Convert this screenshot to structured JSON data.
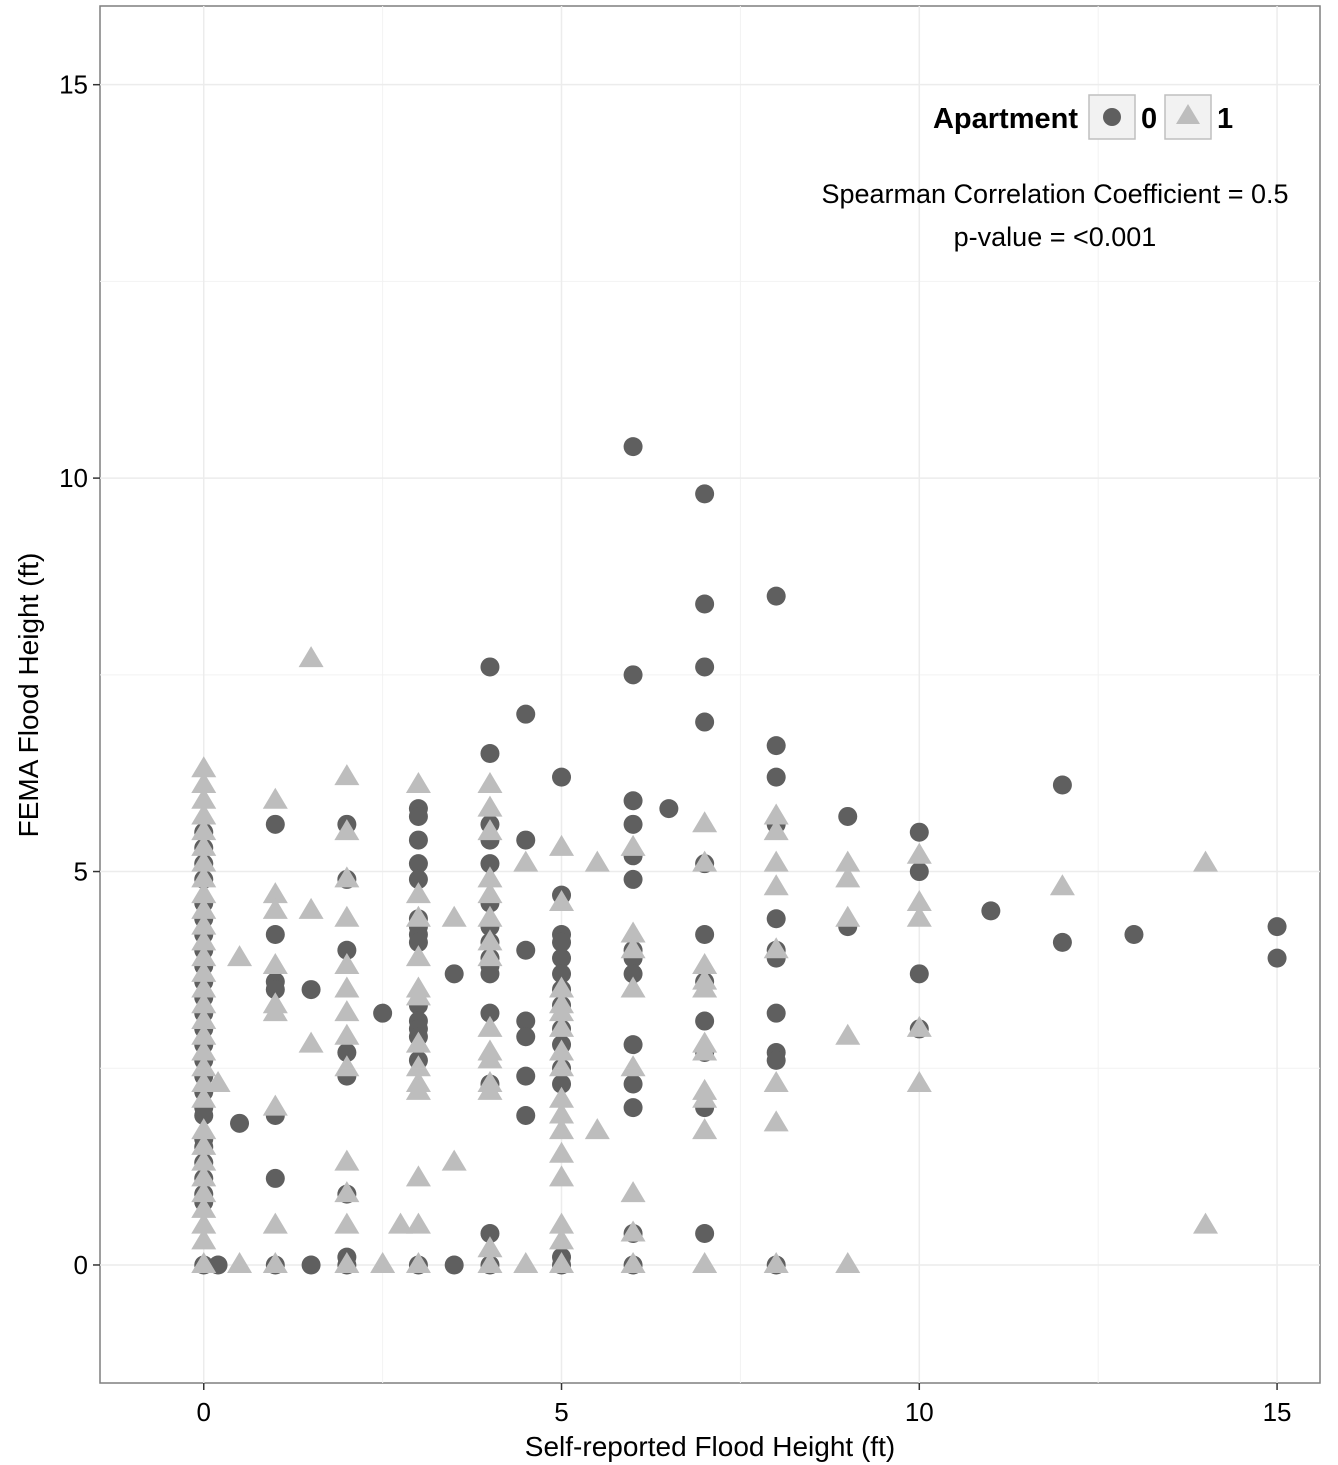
{
  "chart_data": {
    "type": "scatter",
    "xlabel": "Self-reported Flood Height (ft)",
    "ylabel": "FEMA Flood Height (ft)",
    "xlim": [
      -1.45,
      15.6
    ],
    "ylim": [
      -1.5,
      16
    ],
    "x_ticks": [
      0,
      5,
      10,
      15
    ],
    "y_ticks": [
      0,
      5,
      10,
      15
    ],
    "grid": true,
    "legend_position": "top-right",
    "legend": {
      "title": "Apartment",
      "entries": [
        {
          "label": "0",
          "shape": "circle"
        },
        {
          "label": "1",
          "shape": "triangle"
        }
      ]
    },
    "annotation": {
      "line1": "Spearman Correlation Coefficient = 0.5",
      "line2": "p-value = <0.001"
    },
    "colors": {
      "0": "#5f5f5f",
      "1": "#bdbdbd"
    },
    "series": [
      {
        "name": "0",
        "shape": "circle",
        "points": [
          [
            0,
            5.5
          ],
          [
            0,
            5.3
          ],
          [
            0,
            5.1
          ],
          [
            0,
            4.9
          ],
          [
            0,
            4.6
          ],
          [
            0,
            4.4
          ],
          [
            0,
            4.2
          ],
          [
            0,
            4.0
          ],
          [
            0,
            3.8
          ],
          [
            0,
            3.6
          ],
          [
            0,
            3.4
          ],
          [
            0,
            3.2
          ],
          [
            0,
            3.0
          ],
          [
            0,
            2.8
          ],
          [
            0,
            2.6
          ],
          [
            0,
            2.4
          ],
          [
            0,
            2.2
          ],
          [
            0,
            2.0
          ],
          [
            0,
            1.9
          ],
          [
            0,
            1.6
          ],
          [
            0,
            1.5
          ],
          [
            0,
            1.3
          ],
          [
            0,
            1.1
          ],
          [
            0,
            0.9
          ],
          [
            0,
            0.8
          ],
          [
            0,
            0.0
          ],
          [
            0.5,
            1.8
          ],
          [
            0.2,
            0.0
          ],
          [
            1,
            5.6
          ],
          [
            1,
            4.2
          ],
          [
            1,
            3.6
          ],
          [
            1,
            3.5
          ],
          [
            1,
            1.1
          ],
          [
            1,
            1.9
          ],
          [
            1,
            0.0
          ],
          [
            1.5,
            3.5
          ],
          [
            1.5,
            0.0
          ],
          [
            2,
            5.6
          ],
          [
            2,
            4.9
          ],
          [
            2,
            4.0
          ],
          [
            2,
            2.7
          ],
          [
            2,
            2.4
          ],
          [
            2,
            0.9
          ],
          [
            2,
            0.1
          ],
          [
            2,
            0.0
          ],
          [
            2.5,
            3.2
          ],
          [
            3,
            5.8
          ],
          [
            3,
            5.7
          ],
          [
            3,
            5.4
          ],
          [
            3,
            5.1
          ],
          [
            3,
            4.9
          ],
          [
            3,
            4.4
          ],
          [
            3,
            4.3
          ],
          [
            3,
            4.2
          ],
          [
            3,
            4.1
          ],
          [
            3,
            3.3
          ],
          [
            3,
            3.1
          ],
          [
            3,
            3.0
          ],
          [
            3,
            2.9
          ],
          [
            3,
            2.6
          ],
          [
            3,
            0.0
          ],
          [
            3.5,
            3.7
          ],
          [
            3.5,
            0.0
          ],
          [
            4,
            7.6
          ],
          [
            4,
            6.5
          ],
          [
            4,
            5.6
          ],
          [
            4,
            5.4
          ],
          [
            4,
            5.1
          ],
          [
            4,
            4.6
          ],
          [
            4,
            4.3
          ],
          [
            4,
            4.1
          ],
          [
            4,
            3.9
          ],
          [
            4,
            3.8
          ],
          [
            4,
            3.7
          ],
          [
            4,
            3.2
          ],
          [
            4,
            2.3
          ],
          [
            4,
            0.4
          ],
          [
            4,
            0.0
          ],
          [
            4.5,
            7.0
          ],
          [
            4.5,
            5.4
          ],
          [
            4.5,
            4.0
          ],
          [
            4.5,
            3.1
          ],
          [
            4.5,
            2.9
          ],
          [
            4.5,
            2.4
          ],
          [
            4.5,
            1.9
          ],
          [
            5,
            6.2
          ],
          [
            5,
            4.7
          ],
          [
            5,
            4.2
          ],
          [
            5,
            4.1
          ],
          [
            5,
            3.9
          ],
          [
            5,
            3.7
          ],
          [
            5,
            3.5
          ],
          [
            5,
            3.3
          ],
          [
            5,
            3.0
          ],
          [
            5,
            2.8
          ],
          [
            5,
            2.5
          ],
          [
            5,
            2.3
          ],
          [
            5,
            0.1
          ],
          [
            5,
            0.0
          ],
          [
            6,
            10.4
          ],
          [
            6,
            7.5
          ],
          [
            6,
            5.9
          ],
          [
            6,
            5.6
          ],
          [
            6,
            5.2
          ],
          [
            6,
            4.9
          ],
          [
            6,
            4.0
          ],
          [
            6,
            3.9
          ],
          [
            6,
            3.7
          ],
          [
            6,
            2.8
          ],
          [
            6,
            2.3
          ],
          [
            6,
            2.0
          ],
          [
            6,
            0.4
          ],
          [
            6,
            0.0
          ],
          [
            6.5,
            5.8
          ],
          [
            7,
            9.8
          ],
          [
            7,
            8.4
          ],
          [
            7,
            7.6
          ],
          [
            7,
            6.9
          ],
          [
            7,
            5.1
          ],
          [
            7,
            4.2
          ],
          [
            7,
            3.6
          ],
          [
            7,
            3.1
          ],
          [
            7,
            2.7
          ],
          [
            7,
            2.0
          ],
          [
            7,
            0.4
          ],
          [
            8,
            8.5
          ],
          [
            8,
            6.6
          ],
          [
            8,
            6.2
          ],
          [
            8,
            5.6
          ],
          [
            8,
            4.4
          ],
          [
            8,
            4.0
          ],
          [
            8,
            3.9
          ],
          [
            8,
            3.2
          ],
          [
            8,
            2.7
          ],
          [
            8,
            2.6
          ],
          [
            8,
            0.0
          ],
          [
            9,
            5.7
          ],
          [
            9,
            4.3
          ],
          [
            10,
            5.5
          ],
          [
            10,
            5.0
          ],
          [
            10,
            3.7
          ],
          [
            10,
            3.0
          ],
          [
            11,
            4.5
          ],
          [
            12,
            6.1
          ],
          [
            12,
            4.1
          ],
          [
            13,
            4.2
          ],
          [
            15,
            4.3
          ],
          [
            15,
            3.9
          ]
        ]
      },
      {
        "name": "1",
        "shape": "triangle",
        "points": [
          [
            0,
            6.3
          ],
          [
            0,
            6.1
          ],
          [
            0,
            5.9
          ],
          [
            0,
            5.7
          ],
          [
            0,
            5.5
          ],
          [
            0,
            5.3
          ],
          [
            0,
            5.1
          ],
          [
            0,
            4.9
          ],
          [
            0,
            4.7
          ],
          [
            0,
            4.5
          ],
          [
            0,
            4.3
          ],
          [
            0,
            4.1
          ],
          [
            0,
            3.9
          ],
          [
            0,
            3.7
          ],
          [
            0,
            3.5
          ],
          [
            0,
            3.3
          ],
          [
            0,
            3.1
          ],
          [
            0,
            2.9
          ],
          [
            0,
            2.7
          ],
          [
            0,
            2.5
          ],
          [
            0,
            2.3
          ],
          [
            0,
            2.1
          ],
          [
            0,
            1.7
          ],
          [
            0,
            1.5
          ],
          [
            0,
            1.3
          ],
          [
            0,
            1.1
          ],
          [
            0,
            0.9
          ],
          [
            0,
            0.7
          ],
          [
            0,
            0.5
          ],
          [
            0,
            0.3
          ],
          [
            0,
            0.0
          ],
          [
            0.2,
            2.3
          ],
          [
            0.5,
            3.9
          ],
          [
            0.5,
            0.0
          ],
          [
            1,
            5.9
          ],
          [
            1,
            4.7
          ],
          [
            1,
            4.5
          ],
          [
            1,
            3.8
          ],
          [
            1,
            3.3
          ],
          [
            1,
            3.2
          ],
          [
            1,
            2.0
          ],
          [
            1,
            0.5
          ],
          [
            1,
            0.0
          ],
          [
            1.5,
            7.7
          ],
          [
            1.5,
            4.5
          ],
          [
            1.5,
            2.8
          ],
          [
            2,
            6.2
          ],
          [
            2,
            5.5
          ],
          [
            2,
            4.9
          ],
          [
            2,
            4.4
          ],
          [
            2,
            3.8
          ],
          [
            2,
            3.5
          ],
          [
            2,
            3.2
          ],
          [
            2,
            2.9
          ],
          [
            2,
            2.5
          ],
          [
            2,
            1.3
          ],
          [
            2,
            0.9
          ],
          [
            2,
            0.5
          ],
          [
            2,
            0.0
          ],
          [
            2.5,
            0.0
          ],
          [
            2.75,
            0.5
          ],
          [
            3,
            6.1
          ],
          [
            3,
            4.7
          ],
          [
            3,
            4.4
          ],
          [
            3,
            3.9
          ],
          [
            3,
            3.5
          ],
          [
            3,
            3.4
          ],
          [
            3,
            2.8
          ],
          [
            3,
            2.5
          ],
          [
            3,
            2.3
          ],
          [
            3,
            2.2
          ],
          [
            3,
            1.1
          ],
          [
            3,
            0.5
          ],
          [
            3,
            0.0
          ],
          [
            3.5,
            4.4
          ],
          [
            3.5,
            1.3
          ],
          [
            4,
            6.1
          ],
          [
            4,
            5.8
          ],
          [
            4,
            5.5
          ],
          [
            4,
            4.9
          ],
          [
            4,
            4.7
          ],
          [
            4,
            4.4
          ],
          [
            4,
            4.1
          ],
          [
            4,
            3.9
          ],
          [
            4,
            3.0
          ],
          [
            4,
            2.7
          ],
          [
            4,
            2.6
          ],
          [
            4,
            2.3
          ],
          [
            4,
            2.2
          ],
          [
            4,
            0.2
          ],
          [
            4,
            0.0
          ],
          [
            4.5,
            5.1
          ],
          [
            4.5,
            0.0
          ],
          [
            5,
            5.3
          ],
          [
            5,
            4.6
          ],
          [
            5,
            3.5
          ],
          [
            5,
            3.3
          ],
          [
            5,
            3.2
          ],
          [
            5,
            3.0
          ],
          [
            5,
            2.7
          ],
          [
            5,
            2.5
          ],
          [
            5,
            2.1
          ],
          [
            5,
            1.9
          ],
          [
            5,
            1.7
          ],
          [
            5,
            1.4
          ],
          [
            5,
            1.1
          ],
          [
            5,
            0.5
          ],
          [
            5,
            0.3
          ],
          [
            5,
            0.0
          ],
          [
            5.5,
            5.1
          ],
          [
            5.5,
            1.7
          ],
          [
            6,
            5.3
          ],
          [
            6,
            4.2
          ],
          [
            6,
            4.0
          ],
          [
            6,
            3.5
          ],
          [
            6,
            2.5
          ],
          [
            6,
            0.9
          ],
          [
            6,
            0.4
          ],
          [
            6,
            0.0
          ],
          [
            7,
            5.6
          ],
          [
            7,
            5.1
          ],
          [
            7,
            3.8
          ],
          [
            7,
            3.6
          ],
          [
            7,
            3.5
          ],
          [
            7,
            2.8
          ],
          [
            7,
            2.7
          ],
          [
            7,
            2.2
          ],
          [
            7,
            2.1
          ],
          [
            7,
            1.7
          ],
          [
            7,
            0.0
          ],
          [
            8,
            5.7
          ],
          [
            8,
            5.5
          ],
          [
            8,
            5.1
          ],
          [
            8,
            4.8
          ],
          [
            8,
            4.0
          ],
          [
            8,
            2.3
          ],
          [
            8,
            1.8
          ],
          [
            8,
            0.0
          ],
          [
            9,
            5.1
          ],
          [
            9,
            4.9
          ],
          [
            9,
            4.4
          ],
          [
            9,
            2.9
          ],
          [
            9,
            0.0
          ],
          [
            10,
            5.2
          ],
          [
            10,
            4.6
          ],
          [
            10,
            4.4
          ],
          [
            10,
            3.0
          ],
          [
            10,
            2.3
          ],
          [
            12,
            4.8
          ],
          [
            14,
            5.1
          ],
          [
            14,
            0.5
          ]
        ]
      }
    ]
  }
}
